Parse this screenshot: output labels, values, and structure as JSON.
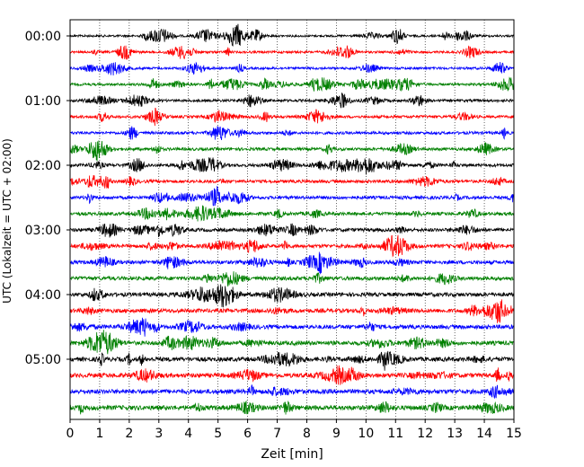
{
  "chart_data": {
    "type": "line",
    "xlabel": "Zeit  [min]",
    "ylabel": "UTC (Lokalzeit = UTC + 02:00)",
    "xlim": [
      0,
      15
    ],
    "x_ticks": [
      "0",
      "1",
      "2",
      "3",
      "4",
      "5",
      "6",
      "7",
      "8",
      "9",
      "10",
      "11",
      "12",
      "13",
      "14",
      "15"
    ],
    "y_ticks": [
      "00:00",
      "01:00",
      "02:00",
      "03:00",
      "04:00",
      "05:00"
    ],
    "trace_interval_min": 15,
    "trace_count": 24,
    "colors": [
      "#000000",
      "#ff0000",
      "#0000ff",
      "#008000"
    ],
    "grid_x": true,
    "grid_style": "dotted"
  }
}
